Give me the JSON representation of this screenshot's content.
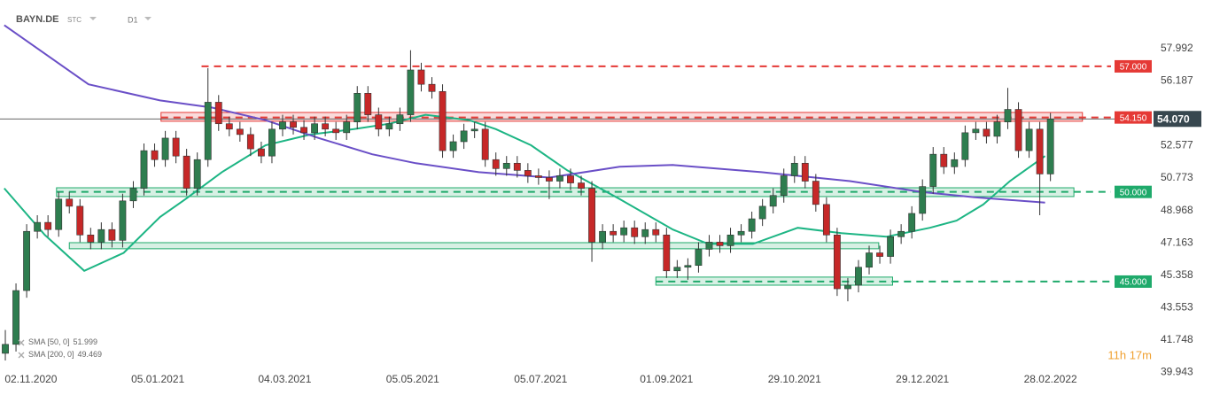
{
  "chart_data": {
    "type": "candlestick",
    "symbol": "BAYN.DE",
    "instrument_type": "STC",
    "interval": "D1",
    "countdown": "11h 17m",
    "up_color": "#2e7d4f",
    "down_color": "#c62828",
    "xlim": [
      -0.5,
      107.5
    ],
    "ylim": [
      39.96,
      60.7
    ],
    "xticks": [
      {
        "value": 2.4,
        "label": "02.11.2020"
      },
      {
        "value": 14.3,
        "label": "05.01.2021"
      },
      {
        "value": 26.2,
        "label": "04.03.2021"
      },
      {
        "value": 38.2,
        "label": "05.05.2021"
      },
      {
        "value": 50.2,
        "label": "05.07.2021"
      },
      {
        "value": 62.0,
        "label": "01.09.2021"
      },
      {
        "value": 74.0,
        "label": "29.10.2021"
      },
      {
        "value": 86.0,
        "label": "29.12.2021"
      },
      {
        "value": 98.0,
        "label": "28.02.2022"
      }
    ],
    "yticks": [
      57.992,
      56.187,
      52.577,
      50.773,
      48.968,
      47.163,
      45.358,
      43.553,
      41.748,
      39.943
    ],
    "x": [
      0,
      1,
      2,
      3,
      4,
      5,
      6,
      7,
      8,
      9,
      10,
      11,
      12,
      13,
      14,
      15,
      16,
      17,
      18,
      19,
      20,
      21,
      22,
      23,
      24,
      25,
      26,
      27,
      28,
      29,
      30,
      31,
      32,
      33,
      34,
      35,
      36,
      37,
      38,
      39,
      40,
      41,
      42,
      43,
      44,
      45,
      46,
      47,
      48,
      49,
      50,
      51,
      52,
      53,
      54,
      55,
      56,
      57,
      58,
      59,
      60,
      61,
      62,
      63,
      64,
      65,
      66,
      67,
      68,
      69,
      70,
      71,
      72,
      73,
      74,
      75,
      76,
      77,
      78,
      79,
      80,
      81,
      82,
      83,
      84,
      85,
      86,
      87,
      88,
      89,
      90,
      91,
      92,
      93,
      94,
      95,
      96,
      97,
      98
    ],
    "open": [
      41.0,
      41.5,
      44.5,
      47.8,
      48.3,
      47.9,
      49.6,
      49.2,
      47.6,
      47.2,
      47.9,
      47.3,
      49.5,
      50.2,
      52.3,
      51.8,
      53.0,
      52.0,
      50.2,
      51.8,
      55.0,
      53.8,
      53.5,
      53.2,
      52.4,
      52.0,
      53.5,
      53.9,
      53.6,
      53.3,
      53.8,
      53.5,
      53.3,
      53.9,
      55.5,
      54.3,
      53.5,
      53.8,
      54.3,
      56.8,
      56.0,
      55.6,
      52.3,
      52.8,
      53.4,
      53.5,
      51.8,
      51.3,
      51.6,
      51.2,
      50.9,
      50.8,
      50.6,
      50.9,
      50.5,
      50.2,
      47.2,
      47.8,
      47.6,
      48.0,
      47.5,
      47.9,
      47.6,
      45.6,
      45.8,
      45.9,
      46.8,
      47.2,
      47.0,
      47.6,
      47.8,
      48.5,
      49.2,
      49.8,
      50.9,
      51.6,
      50.6,
      49.3,
      47.6,
      44.6,
      44.8,
      45.8,
      46.6,
      46.4,
      47.5,
      47.8,
      48.8,
      50.3,
      52.1,
      51.4,
      51.8,
      53.3,
      53.5,
      53.1,
      53.9,
      54.6,
      52.3,
      53.5,
      51.0
    ],
    "high": [
      42.3,
      44.9,
      48.2,
      48.7,
      48.7,
      50.0,
      50.0,
      49.6,
      48.0,
      48.3,
      48.3,
      49.9,
      50.6,
      52.7,
      52.7,
      53.4,
      53.4,
      52.4,
      52.2,
      56.9,
      55.4,
      54.2,
      53.9,
      53.6,
      52.8,
      53.9,
      54.3,
      54.3,
      54.0,
      54.2,
      54.2,
      53.9,
      54.3,
      55.9,
      55.9,
      54.7,
      54.2,
      54.7,
      57.9,
      57.2,
      56.4,
      56.0,
      53.2,
      53.8,
      53.9,
      53.9,
      52.2,
      52.0,
      52.0,
      51.6,
      51.3,
      51.2,
      51.3,
      51.3,
      50.9,
      50.6,
      48.2,
      48.2,
      48.4,
      48.4,
      48.3,
      48.3,
      48.0,
      46.2,
      46.3,
      47.2,
      47.6,
      47.6,
      48.0,
      48.2,
      48.9,
      49.6,
      50.2,
      51.3,
      52.0,
      52.0,
      51.0,
      49.7,
      48.0,
      45.2,
      46.2,
      47.0,
      47.0,
      47.9,
      48.2,
      49.2,
      50.7,
      52.5,
      52.5,
      52.2,
      53.7,
      53.9,
      53.9,
      54.3,
      55.8,
      55.0,
      53.9,
      53.9,
      54.4
    ],
    "low": [
      40.6,
      41.1,
      44.1,
      47.4,
      47.5,
      47.5,
      48.8,
      47.2,
      46.8,
      46.8,
      46.9,
      46.9,
      49.1,
      49.8,
      51.4,
      51.4,
      51.6,
      49.8,
      49.8,
      51.4,
      53.4,
      53.1,
      52.8,
      52.0,
      51.6,
      51.6,
      53.1,
      53.2,
      52.9,
      52.9,
      53.1,
      52.9,
      52.9,
      53.5,
      53.9,
      53.1,
      53.1,
      53.4,
      53.9,
      55.6,
      55.2,
      51.9,
      51.9,
      52.4,
      53.0,
      51.4,
      50.9,
      50.9,
      50.8,
      50.5,
      50.4,
      49.6,
      50.2,
      50.1,
      49.8,
      46.1,
      46.8,
      47.2,
      47.2,
      47.1,
      47.1,
      47.2,
      45.2,
      45.2,
      45.1,
      45.5,
      46.4,
      46.6,
      46.6,
      47.2,
      47.4,
      48.1,
      48.8,
      49.4,
      50.5,
      50.2,
      48.9,
      47.2,
      44.2,
      43.9,
      44.4,
      45.4,
      46.0,
      46.0,
      47.1,
      47.4,
      48.4,
      49.9,
      51.0,
      51.0,
      51.4,
      52.9,
      52.7,
      52.7,
      53.5,
      51.9,
      51.9,
      48.7,
      50.6
    ],
    "close": [
      41.5,
      44.5,
      47.8,
      48.3,
      47.9,
      49.6,
      49.2,
      47.6,
      47.2,
      47.9,
      47.3,
      49.5,
      50.2,
      52.3,
      51.8,
      53.0,
      52.0,
      50.2,
      51.8,
      55.0,
      53.8,
      53.5,
      53.2,
      52.4,
      52.0,
      53.5,
      53.9,
      53.6,
      53.3,
      53.8,
      53.5,
      53.3,
      53.9,
      55.5,
      54.3,
      53.5,
      53.8,
      54.3,
      56.8,
      56.0,
      55.6,
      52.3,
      52.8,
      53.4,
      53.5,
      51.8,
      51.3,
      51.6,
      51.2,
      50.9,
      50.8,
      50.6,
      50.9,
      50.5,
      50.2,
      47.2,
      47.8,
      47.6,
      48.0,
      47.5,
      47.9,
      47.6,
      45.6,
      45.8,
      45.9,
      46.8,
      47.2,
      47.0,
      47.6,
      47.8,
      48.5,
      49.2,
      49.8,
      50.9,
      51.6,
      50.6,
      49.3,
      47.6,
      44.6,
      44.8,
      45.8,
      46.6,
      46.4,
      47.5,
      47.8,
      48.8,
      50.3,
      52.1,
      51.4,
      51.8,
      53.3,
      53.5,
      53.1,
      53.9,
      54.6,
      52.3,
      53.5,
      51.0,
      54.07
    ],
    "last_price": {
      "value": 54.07,
      "label": "54.070"
    },
    "series": [
      {
        "name": "SMA [50, 0]",
        "last": 51.999,
        "color": "#1db584",
        "x": [
          -0.1,
          3.7,
          7.4,
          11.1,
          14.5,
          16.9,
          20.3,
          24.4,
          28.6,
          32.7,
          36.0,
          39.4,
          43.5,
          46.0,
          49.3,
          52.7,
          57.6,
          62.6,
          65.9,
          70.1,
          74.3,
          78.4,
          82.6,
          86.7,
          89.2,
          91.7,
          94.2,
          97.5
        ],
        "values": [
          50.2,
          47.6,
          45.6,
          46.6,
          48.6,
          49.6,
          51.1,
          52.6,
          53.2,
          53.5,
          53.8,
          54.3,
          54.0,
          53.5,
          52.6,
          51.2,
          49.6,
          47.9,
          47.1,
          47.1,
          48.0,
          47.7,
          47.5,
          48.0,
          48.4,
          49.3,
          50.6,
          52.0
        ]
      },
      {
        "name": "SMA [200, 0]",
        "last": 49.469,
        "color": "#6a4fc7",
        "x": [
          -0.1,
          7.8,
          14.5,
          19.4,
          24.4,
          29.4,
          34.4,
          38.5,
          44.4,
          51.0,
          57.6,
          62.6,
          70.9,
          79.2,
          85.9,
          90.9,
          97.5
        ],
        "values": [
          59.3,
          56.0,
          55.1,
          54.7,
          54.0,
          53.0,
          52.1,
          51.6,
          51.1,
          50.8,
          51.4,
          51.5,
          51.1,
          50.6,
          50.0,
          49.7,
          49.4
        ]
      }
    ],
    "levels": [
      {
        "value": 57,
        "label": "57.000",
        "color": "#e53935",
        "from": 18.4
      },
      {
        "value": 54.15,
        "label": "54.150",
        "color": "#e53935",
        "from": 14.6
      },
      {
        "value": 50,
        "label": "50.000",
        "color": "#1faa6b",
        "from": 4.8
      },
      {
        "value": 45,
        "label": "45.000",
        "color": "#1faa6b",
        "from": 61.0
      }
    ],
    "zones": [
      {
        "from": 14.6,
        "to": 101.0,
        "low": 53.94,
        "high": 54.43,
        "color": "#e53935"
      },
      {
        "from": 4.8,
        "to": 100.2,
        "low": 49.74,
        "high": 50.23,
        "color": "#1faa6b"
      },
      {
        "from": 6.0,
        "to": 81.9,
        "low": 46.83,
        "high": 47.17,
        "color": "#1faa6b"
      },
      {
        "from": 61.0,
        "to": 83.2,
        "low": 44.8,
        "high": 45.25,
        "color": "#1faa6b"
      }
    ]
  }
}
